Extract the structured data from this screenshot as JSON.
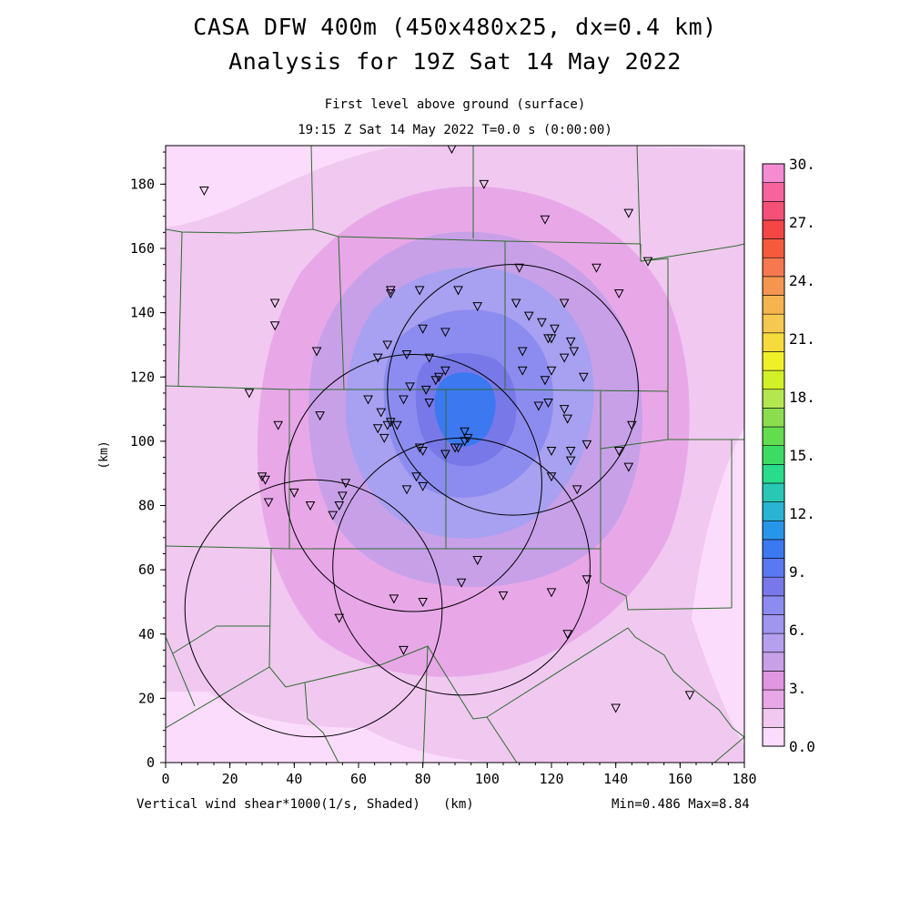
{
  "title": {
    "line1": "CASA DFW 400m (450x480x25, dx=0.4 km)",
    "line2": "Analysis for 19Z Sat 14 May 2022",
    "line3": "First level above ground (surface)",
    "line4": "19:15 Z Sat 14 May 2022    T=0.0 s (0:00:00)"
  },
  "axes": {
    "x_ticks": [
      "0",
      "20",
      "40",
      "60",
      "80",
      "100",
      "120",
      "140",
      "160",
      "180"
    ],
    "y_ticks": [
      "0",
      "20",
      "40",
      "60",
      "80",
      "100",
      "120",
      "140",
      "160",
      "180"
    ],
    "y_label": "(km)",
    "x_label": "(km)",
    "x_range": [
      0,
      180
    ],
    "y_range": [
      0,
      192
    ]
  },
  "footer": {
    "variable": "Vertical wind shear*1000(1/s, Shaded)",
    "x_unit": "(km)",
    "minmax": "Min=0.486 Max=8.84"
  },
  "colorbar": {
    "labels": [
      "0.0",
      "3.",
      "6.",
      "9.",
      "12.",
      "15.",
      "18.",
      "21.",
      "24.",
      "27.",
      "30."
    ],
    "colors": [
      "#fcdcfc",
      "#f0c8f0",
      "#e8a8e8",
      "#e096e0",
      "#c8a0e8",
      "#b4a0ec",
      "#a096f0",
      "#8c8cf0",
      "#7878e8",
      "#5a78f0",
      "#3c78f0",
      "#2896e8",
      "#28b4d2",
      "#28c8b4",
      "#28dc8c",
      "#3cdc64",
      "#64dc50",
      "#8cdc50",
      "#b4e650",
      "#d2f028",
      "#f0f028",
      "#f5dc3c",
      "#f5c850",
      "#f5b450",
      "#f59650",
      "#f57850",
      "#f55a3c",
      "#f54646",
      "#f55078",
      "#f5649c",
      "#f58cd2"
    ]
  },
  "chart_data": {
    "type": "heatmap",
    "variable": "Vertical wind shear*1000 (1/s)",
    "min": 0.486,
    "max": 8.84,
    "max_location_km": [
      93,
      103
    ],
    "radars_km": [
      {
        "x": 108,
        "y": 116,
        "radius": 39
      },
      {
        "x": 77,
        "y": 87,
        "radius": 40
      },
      {
        "x": 92,
        "y": 61,
        "radius": 40
      },
      {
        "x": 46,
        "y": 48,
        "radius": 40
      }
    ],
    "stations_km": [
      [
        12,
        178
      ],
      [
        89,
        191
      ],
      [
        99,
        180
      ],
      [
        118,
        169
      ],
      [
        144,
        171
      ],
      [
        134,
        154
      ],
      [
        150,
        156
      ],
      [
        110,
        154
      ],
      [
        141,
        146
      ],
      [
        70,
        147
      ],
      [
        70,
        146
      ],
      [
        34,
        143
      ],
      [
        34,
        136
      ],
      [
        79,
        147
      ],
      [
        91,
        147
      ],
      [
        97,
        142
      ],
      [
        109,
        143
      ],
      [
        113,
        139
      ],
      [
        117,
        137
      ],
      [
        124,
        143
      ],
      [
        119,
        132
      ],
      [
        120,
        132
      ],
      [
        121,
        135
      ],
      [
        126,
        131
      ],
      [
        127,
        128
      ],
      [
        124,
        126
      ],
      [
        47,
        128
      ],
      [
        66,
        126
      ],
      [
        69,
        130
      ],
      [
        80,
        135
      ],
      [
        87,
        134
      ],
      [
        75,
        127
      ],
      [
        82,
        126
      ],
      [
        87,
        122
      ],
      [
        81,
        116
      ],
      [
        84,
        119
      ],
      [
        85,
        120
      ],
      [
        82,
        112
      ],
      [
        93,
        103
      ],
      [
        94,
        101
      ],
      [
        91,
        98
      ],
      [
        111,
        128
      ],
      [
        111,
        122
      ],
      [
        118,
        119
      ],
      [
        120,
        122
      ],
      [
        119,
        112
      ],
      [
        116,
        111
      ],
      [
        124,
        110
      ],
      [
        125,
        107
      ],
      [
        130,
        120
      ],
      [
        26,
        115
      ],
      [
        63,
        113
      ],
      [
        67,
        109
      ],
      [
        74,
        113
      ],
      [
        76,
        117
      ],
      [
        35,
        105
      ],
      [
        48,
        108
      ],
      [
        66,
        104
      ],
      [
        69,
        105
      ],
      [
        70,
        106
      ],
      [
        72,
        105
      ],
      [
        68,
        101
      ],
      [
        79,
        98
      ],
      [
        80,
        97
      ],
      [
        87,
        96
      ],
      [
        90,
        98
      ],
      [
        93,
        100
      ],
      [
        78,
        89
      ],
      [
        80,
        86
      ],
      [
        75,
        85
      ],
      [
        141,
        97
      ],
      [
        144,
        92
      ],
      [
        145,
        105
      ],
      [
        120,
        97
      ],
      [
        120,
        89
      ],
      [
        126,
        97
      ],
      [
        126,
        94
      ],
      [
        128,
        85
      ],
      [
        131,
        99
      ],
      [
        30,
        89
      ],
      [
        31,
        88
      ],
      [
        32,
        81
      ],
      [
        40,
        84
      ],
      [
        45,
        80
      ],
      [
        52,
        77
      ],
      [
        54,
        80
      ],
      [
        55,
        83
      ],
      [
        56,
        87
      ],
      [
        97,
        63
      ],
      [
        92,
        56
      ],
      [
        71,
        51
      ],
      [
        80,
        50
      ],
      [
        105,
        52
      ],
      [
        120,
        53
      ],
      [
        131,
        57
      ],
      [
        125,
        40
      ],
      [
        54,
        45
      ],
      [
        74,
        35
      ],
      [
        140,
        17
      ],
      [
        163,
        21
      ]
    ]
  }
}
